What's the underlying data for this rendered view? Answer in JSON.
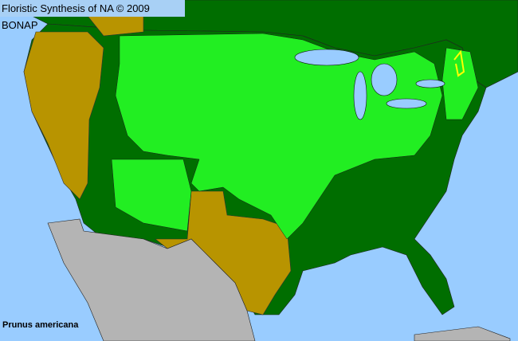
{
  "title": "Floristic Synthesis of NA © 2009 BONAP",
  "species": "Prunus americana",
  "colors": {
    "ocean": "#99ccff",
    "native_present": "#00d800",
    "native_common": "#00ff33",
    "not_present_state": "#b89400",
    "other_region": "#006e00",
    "non_us": "#b4b4b4",
    "noxious_or_exotic": "#ffff00"
  }
}
